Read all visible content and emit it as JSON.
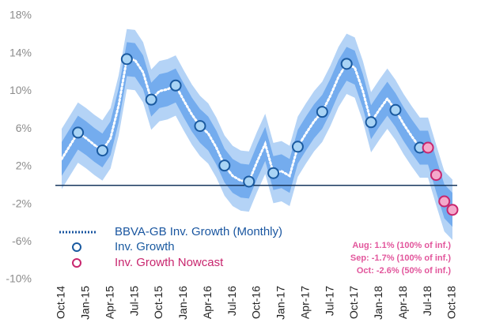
{
  "chart_data": {
    "type": "line",
    "categories": [
      "Oct-14",
      null,
      null,
      "Jan-15",
      null,
      null,
      "Apr-15",
      null,
      null,
      "Jul-15",
      null,
      null,
      "Oct-15",
      null,
      null,
      "Jan-16",
      null,
      null,
      "Apr-16",
      null,
      null,
      "Jul-16",
      null,
      null,
      "Oct-16",
      null,
      null,
      "Jan-17",
      null,
      null,
      "Apr-17",
      null,
      null,
      "Jul-17",
      null,
      null,
      "Oct-17",
      null,
      null,
      "Jan-18",
      null,
      null,
      "Apr-18",
      null,
      null,
      "Jul-18",
      null,
      null,
      "Oct-18"
    ],
    "series": [
      {
        "name": "BBVA-GB Inv. Growth (Monthly)",
        "color": "#ffffff",
        "style": "dotted",
        "values": [
          2.8,
          4.2,
          5.6,
          5.0,
          4.3,
          3.7,
          5.0,
          8.5,
          13.4,
          13.3,
          12.0,
          9.1,
          10.0,
          10.2,
          10.6,
          9.0,
          7.5,
          6.3,
          5.5,
          4.0,
          2.1,
          1.0,
          0.5,
          0.4,
          2.5,
          4.4,
          1.3,
          1.5,
          1.0,
          4.1,
          5.5,
          6.8,
          7.8,
          9.5,
          11.5,
          12.9,
          12.5,
          10.0,
          6.7,
          8.0,
          9.2,
          8.0,
          6.5,
          5.2,
          4.0,
          4.0,
          null,
          null,
          null
        ]
      },
      {
        "name": "Inv. Growth",
        "color": "#1a5aa0",
        "fill": "#a9d4f5",
        "style": "circle",
        "values": [
          null,
          null,
          5.6,
          null,
          null,
          3.7,
          null,
          null,
          13.4,
          null,
          null,
          9.1,
          null,
          null,
          10.6,
          null,
          null,
          6.3,
          null,
          null,
          2.1,
          null,
          null,
          0.4,
          null,
          null,
          1.3,
          null,
          null,
          4.1,
          null,
          null,
          7.8,
          null,
          null,
          12.9,
          null,
          null,
          6.7,
          null,
          null,
          8.0,
          null,
          null,
          4.0,
          null,
          null,
          null,
          null
        ]
      },
      {
        "name": "Inv. Growth Nowcast",
        "color": "#c8266e",
        "fill": "#f4a9cb",
        "style": "circle",
        "values": [
          null,
          null,
          null,
          null,
          null,
          null,
          null,
          null,
          null,
          null,
          null,
          null,
          null,
          null,
          null,
          null,
          null,
          null,
          null,
          null,
          null,
          null,
          null,
          null,
          null,
          null,
          null,
          null,
          null,
          null,
          null,
          null,
          null,
          null,
          null,
          null,
          null,
          null,
          null,
          null,
          null,
          null,
          null,
          null,
          null,
          4.0,
          1.1,
          -1.7,
          -2.6
        ]
      }
    ],
    "bands": [
      {
        "color": "#b4d3f6",
        "upper": [
          6.0,
          7.4,
          8.8,
          8.2,
          7.5,
          6.9,
          8.2,
          11.7,
          16.6,
          16.5,
          15.2,
          12.3,
          13.2,
          13.4,
          13.8,
          12.2,
          10.7,
          9.5,
          8.7,
          7.2,
          5.3,
          4.2,
          3.7,
          3.6,
          5.7,
          7.6,
          4.5,
          4.7,
          4.2,
          7.3,
          8.7,
          10.0,
          11.0,
          12.7,
          14.7,
          16.1,
          15.7,
          13.2,
          9.9,
          11.2,
          12.4,
          11.2,
          9.7,
          8.4,
          7.2,
          7.2,
          4.3,
          1.5,
          0.6
        ],
        "lower": [
          -0.4,
          1.0,
          2.4,
          1.8,
          1.1,
          0.5,
          1.8,
          5.3,
          10.2,
          10.1,
          8.8,
          5.9,
          6.8,
          7.0,
          7.4,
          5.8,
          4.3,
          3.1,
          2.3,
          0.8,
          -1.1,
          -2.2,
          -2.7,
          -2.8,
          -0.7,
          1.2,
          -1.9,
          -1.7,
          -2.2,
          0.9,
          2.3,
          3.6,
          4.6,
          6.3,
          8.3,
          9.7,
          9.3,
          6.8,
          3.5,
          4.8,
          6.0,
          4.8,
          3.3,
          2.0,
          0.8,
          0.8,
          -2.1,
          -4.9,
          -5.8
        ]
      },
      {
        "color": "#74acee",
        "upper": [
          4.6,
          6.0,
          7.4,
          6.8,
          6.1,
          5.5,
          6.8,
          10.3,
          15.2,
          15.1,
          13.8,
          10.9,
          11.8,
          12.0,
          12.4,
          10.8,
          9.3,
          8.1,
          7.3,
          5.8,
          3.9,
          2.8,
          2.3,
          2.2,
          4.3,
          6.2,
          3.1,
          3.3,
          2.8,
          5.9,
          7.3,
          8.6,
          9.6,
          11.3,
          13.3,
          14.7,
          14.3,
          11.8,
          8.5,
          9.8,
          11.0,
          9.8,
          8.3,
          7.0,
          5.8,
          5.8,
          2.9,
          0.1,
          -0.8
        ],
        "lower": [
          1.0,
          2.4,
          3.8,
          3.2,
          2.5,
          1.9,
          3.2,
          6.7,
          11.6,
          11.5,
          10.2,
          7.3,
          8.2,
          8.4,
          8.8,
          7.2,
          5.7,
          4.5,
          3.7,
          2.2,
          0.3,
          -0.8,
          -1.3,
          -1.4,
          0.7,
          2.6,
          -0.5,
          -0.3,
          -0.8,
          2.3,
          3.7,
          5.0,
          6.0,
          7.7,
          9.7,
          11.1,
          10.7,
          8.2,
          4.9,
          6.2,
          7.4,
          6.2,
          4.7,
          3.4,
          2.2,
          2.2,
          -0.7,
          -3.5,
          -4.4
        ]
      }
    ],
    "reference_line": {
      "value": 0,
      "color": "#17375e"
    },
    "ylim": [
      -10,
      18
    ],
    "yticks": [
      {
        "value": -10,
        "label": "-10%"
      },
      {
        "value": -6,
        "label": "-6%"
      },
      {
        "value": -2,
        "label": "-2%"
      },
      {
        "value": 2,
        "label": "2%"
      },
      {
        "value": 6,
        "label": "6%"
      },
      {
        "value": 10,
        "label": "10%"
      },
      {
        "value": 14,
        "label": "14%"
      },
      {
        "value": 18,
        "label": "18%"
      }
    ],
    "grid": false,
    "legend": "lower left",
    "annotations": [
      "Aug: 1.1% (100% of inf.)",
      "Sep: -1.7% (100% of inf.)",
      "Oct: -2.6% (50% of inf.)"
    ]
  }
}
